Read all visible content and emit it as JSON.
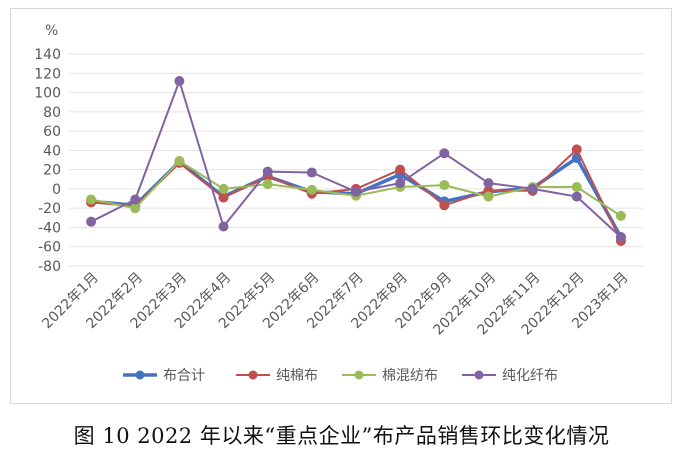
{
  "chart_data": {
    "type": "line",
    "unit": "%",
    "ylim": [
      -80,
      140
    ],
    "ytick_step": 20,
    "grid": true,
    "legend_position": "bottom",
    "categories": [
      "2022年1月",
      "2022年2月",
      "2022年3月",
      "2022年4月",
      "2022年5月",
      "2022年6月",
      "2022年7月",
      "2022年8月",
      "2022年9月",
      "2022年10月",
      "2022年11月",
      "2022年12月",
      "2023年1月"
    ],
    "series": [
      {
        "name": "布合计",
        "color": "#4472c4",
        "width": 3.5,
        "values": [
          -13,
          -17,
          28,
          -8,
          13,
          -3,
          -5,
          15,
          -13,
          -3,
          1,
          32,
          -50
        ]
      },
      {
        "name": "纯棉布",
        "color": "#c0504d",
        "width": 2,
        "values": [
          -14,
          -18,
          27,
          -9,
          13,
          -5,
          0,
          20,
          -17,
          -2,
          -2,
          41,
          -54
        ]
      },
      {
        "name": "棉混纺布",
        "color": "#9bbb59",
        "width": 2,
        "values": [
          -11,
          -20,
          29,
          0,
          5,
          -1,
          -7,
          2,
          4,
          -8,
          2,
          2,
          -28
        ]
      },
      {
        "name": "纯化纤布",
        "color": "#8064a2",
        "width": 2,
        "values": [
          -34,
          -11,
          112,
          -39,
          18,
          17,
          -3,
          6,
          37,
          6,
          0,
          -8,
          -50
        ]
      }
    ]
  },
  "caption": "图 10   2022 年以来“重点企业”布产品销售环比变化情况"
}
